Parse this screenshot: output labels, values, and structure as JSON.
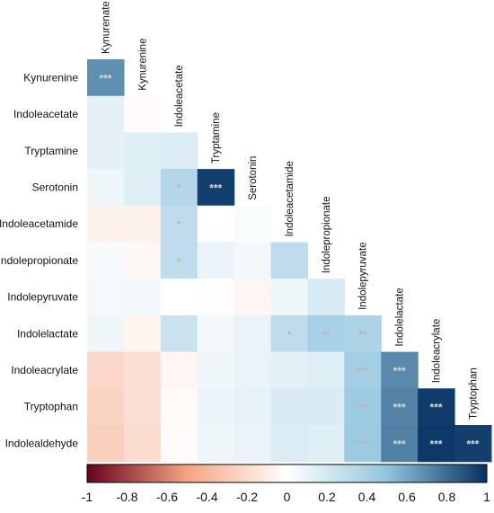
{
  "chart_data": {
    "type": "heatmap",
    "subtype": "lower-triangular correlation matrix",
    "variables": [
      "Kynurenine",
      "Indoleacetate",
      "Tryptamine",
      "Serotonin",
      "Indoleacetamide",
      "Indolepropionate",
      "Indolepyruvate",
      "Indolelactate",
      "Indoleacrylate",
      "Tryptophan",
      "Indolealdehyde"
    ],
    "column_labels": [
      "Kynurenate",
      "Kynurenine",
      "Indoleacetate",
      "Tryptamine",
      "Serotonin",
      "Indoleacetamide",
      "Indolepropionate",
      "Indolepyruvate",
      "Indolelactate",
      "Indoleacrylate",
      "Tryptophan"
    ],
    "values": [
      [
        0.68
      ],
      [
        0.12,
        -0.02
      ],
      [
        0.12,
        0.15,
        0.16
      ],
      [
        0.08,
        0.14,
        0.35,
        0.95
      ],
      [
        -0.08,
        -0.08,
        0.3,
        0.0,
        0.03
      ],
      [
        0.04,
        -0.04,
        0.3,
        0.1,
        0.06,
        0.3
      ],
      [
        0.05,
        0.06,
        0.0,
        -0.01,
        -0.05,
        0.07,
        0.18
      ],
      [
        0.08,
        -0.06,
        0.25,
        0.06,
        0.1,
        0.3,
        0.4,
        0.38
      ],
      [
        -0.22,
        -0.18,
        -0.05,
        0.07,
        0.1,
        0.13,
        0.15,
        0.42,
        0.7
      ],
      [
        -0.24,
        -0.18,
        -0.03,
        0.09,
        0.11,
        0.17,
        0.17,
        0.45,
        0.72,
        0.96
      ],
      [
        -0.26,
        -0.19,
        -0.02,
        0.08,
        0.1,
        0.16,
        0.15,
        0.46,
        0.73,
        0.97,
        0.95
      ]
    ],
    "significance": [
      [
        "***"
      ],
      [
        "",
        ""
      ],
      [
        "",
        "",
        ""
      ],
      [
        "",
        "",
        "*",
        "***"
      ],
      [
        "",
        "",
        "*",
        "",
        ""
      ],
      [
        "",
        "",
        "*",
        "",
        "",
        ""
      ],
      [
        "",
        "",
        "",
        "",
        "",
        "",
        ""
      ],
      [
        "",
        "",
        "",
        "",
        "",
        "*",
        "**",
        "**"
      ],
      [
        "",
        "",
        "",
        "",
        "",
        "",
        "",
        "***",
        "***"
      ],
      [
        "",
        "",
        "",
        "",
        "",
        "",
        "",
        "***",
        "***",
        "***"
      ],
      [
        "",
        "",
        "",
        "",
        "",
        "",
        "",
        "***",
        "***",
        "***",
        "***"
      ]
    ],
    "colorbar": {
      "range": [
        -1,
        1
      ],
      "ticks": [
        "-1",
        "-0.8",
        "-0.6",
        "-0.4",
        "-0.2",
        "0",
        "0.2",
        "0.4",
        "0.6",
        "0.8",
        "1"
      ],
      "colors": {
        "neg_end": "#67001f",
        "neg_mid": "#f4a582",
        "zero": "#ffffff",
        "pos_mid": "#92c5de",
        "pos_end": "#053061"
      }
    },
    "annotation_colors": {
      "light": "#d0d0d0",
      "faint": "#b8b8b8"
    }
  }
}
